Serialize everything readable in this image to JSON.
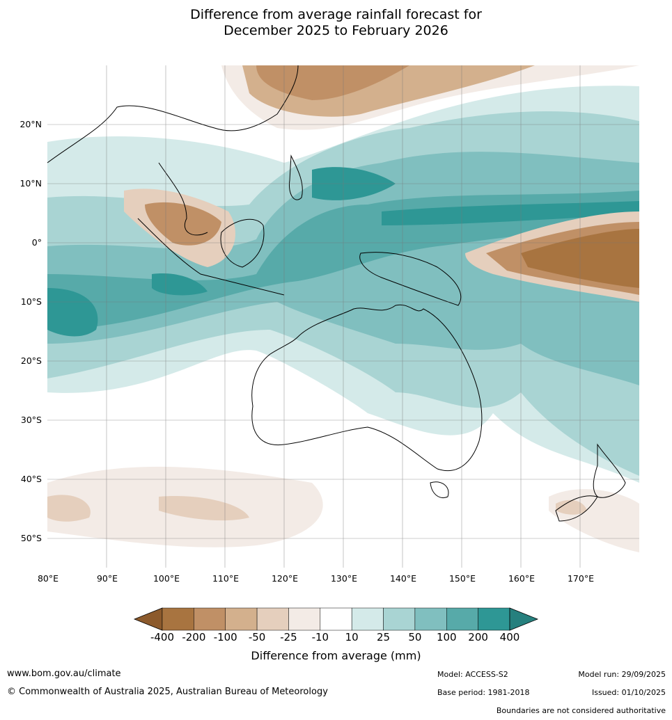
{
  "title_line1": "Difference from average rainfall forecast for",
  "title_line2": "December 2025 to February 2026",
  "lat_labels": [
    "20°N",
    "10°N",
    "0°",
    "10°S",
    "20°S",
    "30°S",
    "40°S",
    "50°S"
  ],
  "lon_labels": [
    "80°E",
    "90°E",
    "100°E",
    "110°E",
    "120°E",
    "130°E",
    "140°E",
    "150°E",
    "160°E",
    "170°E"
  ],
  "colorbar": {
    "ticks": [
      "-400",
      "-200",
      "-100",
      "-50",
      "-25",
      "-10",
      "10",
      "25",
      "50",
      "100",
      "200",
      "400"
    ],
    "colors": [
      "#8c5a2c",
      "#a87440",
      "#c09066",
      "#d3b08d",
      "#e5cfbd",
      "#f3ebe6",
      "#ffffff",
      "#d4eae9",
      "#a9d4d3",
      "#80bfbf",
      "#57aaa9",
      "#2e9795",
      "#26807e"
    ],
    "title": "Difference from average (mm)"
  },
  "footer": {
    "url": "www.bom.gov.au/climate",
    "copyright": "© Commonwealth of Australia 2025, Australian Bureau of Meteorology",
    "model": "Model: ACCESS-S2",
    "base_period": "Base period: 1981-2018",
    "model_run": "Model run: 29/09/2025",
    "issued": "Issued: 01/10/2025",
    "boundaries": "Boundaries are not considered authoritative"
  }
}
